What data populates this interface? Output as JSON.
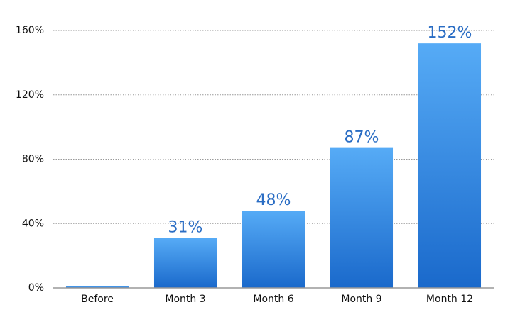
{
  "chart_data": {
    "type": "bar",
    "categories": [
      "Before",
      "Month 3",
      "Month 6",
      "Month 9",
      "Month 12"
    ],
    "values": [
      1,
      31,
      48,
      87,
      152
    ],
    "value_labels": [
      null,
      "31%",
      "48%",
      "87%",
      "152%"
    ],
    "color": "#3a8de6",
    "ylim": [
      0,
      160
    ],
    "yticks": [
      {
        "value": 0,
        "label": "0%"
      },
      {
        "value": 40,
        "label": "40%"
      },
      {
        "value": 80,
        "label": "80%"
      },
      {
        "value": 120,
        "label": "120%"
      },
      {
        "value": 160,
        "label": "160%"
      }
    ],
    "grid": true
  }
}
